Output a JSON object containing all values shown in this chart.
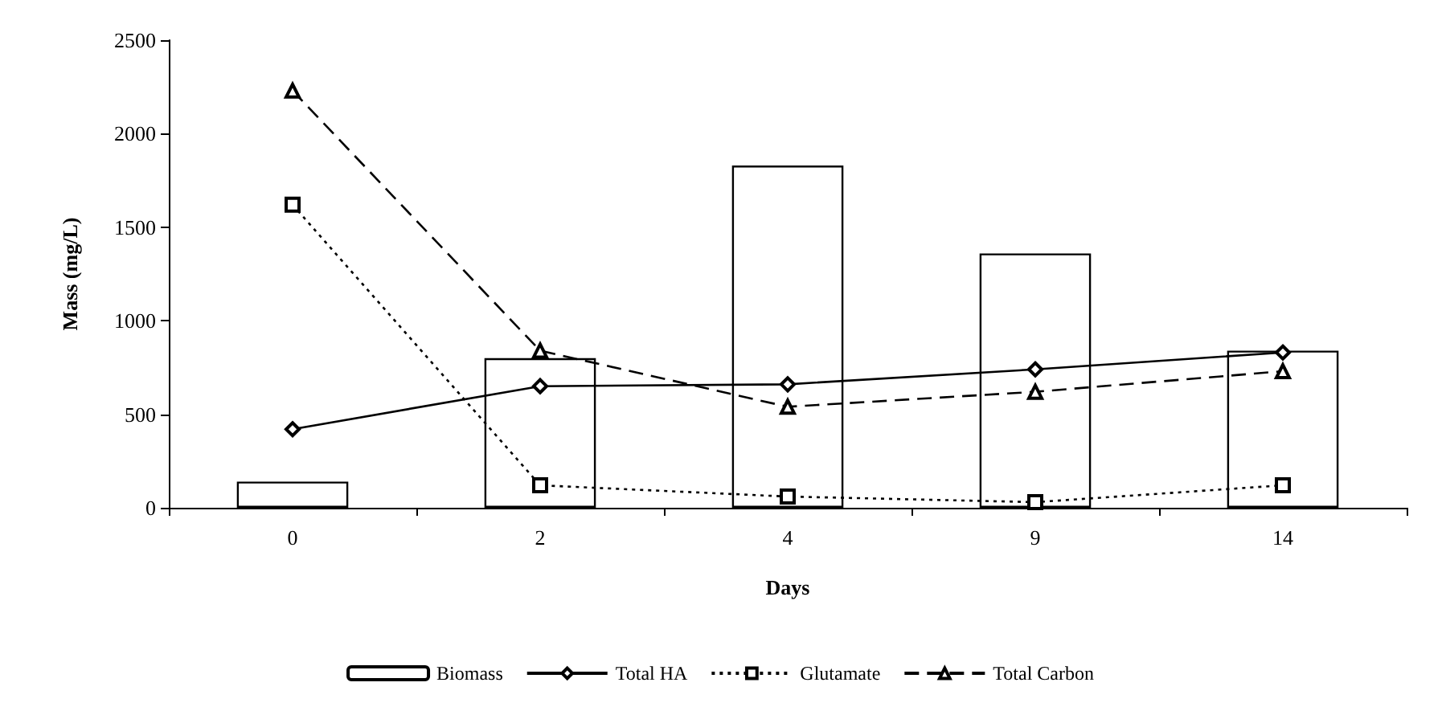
{
  "chart_data": {
    "type": "bar",
    "xlabel": "Days",
    "ylabel": "Mass (mg/L)",
    "categories": [
      "0",
      "2",
      "4",
      "9",
      "14"
    ],
    "series": [
      {
        "name": "Biomass",
        "color": "#ffffff",
        "values": [
          140,
          800,
          1830,
          1360,
          840
        ]
      },
      {
        "name": "Total HA",
        "type": "line",
        "color": "#000000",
        "marker": "diamond",
        "line_style": "solid",
        "values": [
          420,
          650,
          660,
          740,
          830
        ]
      },
      {
        "name": "Glutamate",
        "type": "line",
        "color": "#000000",
        "marker": "square",
        "line_style": "dotted",
        "values": [
          1620,
          120,
          60,
          30,
          120
        ]
      },
      {
        "name": "Total Carbon",
        "type": "line",
        "color": "#000000",
        "marker": "triangle",
        "line_style": "dashed",
        "values": [
          2230,
          840,
          540,
          620,
          730
        ]
      }
    ],
    "ylim": [
      0,
      2500
    ],
    "yticks": [
      0,
      500,
      1000,
      1500,
      2000,
      2500
    ],
    "grid": false,
    "legend": "bottom"
  }
}
